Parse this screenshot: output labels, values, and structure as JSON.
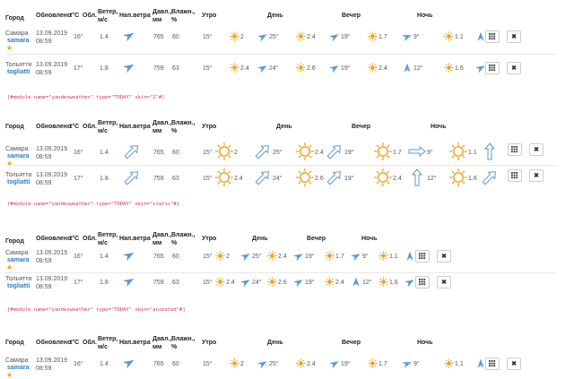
{
  "headers": {
    "city": "Город",
    "updated": "Обновлено",
    "temp": "t°С",
    "cloud": "Обл.",
    "wind_speed": [
      "Ветер,",
      "м/с"
    ],
    "wind_dir": "Нап.ветра",
    "pressure": [
      "Давл.,",
      "мм"
    ],
    "humidity": [
      "Влажн.,",
      "%"
    ],
    "morning": "Утро",
    "day": "День",
    "evening": "Вечер",
    "night": "Ночь"
  },
  "cities": [
    {
      "name": "Самара",
      "slug": "samara",
      "date": "13.09.2019",
      "time": "08:59",
      "temp": "16°",
      "wind": "1.4",
      "pressure": "765",
      "humidity": "60",
      "morning_t": "15°",
      "p1": "2",
      "day_t": "25°",
      "p2": "2.4",
      "evening_t": "19°",
      "p3": "1.7",
      "night_t": "9°",
      "p4": "1.1"
    },
    {
      "name": "Тольятти",
      "slug": "togliatti",
      "date": "13.09.2019",
      "time": "08:59",
      "temp": "17°",
      "wind": "1.8",
      "pressure": "759",
      "humidity": "63",
      "morning_t": "15°",
      "p1": "2.4",
      "day_t": "24°",
      "p2": "2.6",
      "evening_t": "19°",
      "p3": "2.4",
      "night_t": "12°",
      "p4": "1.6"
    }
  ],
  "modules": [
    "[#module name=\"yandexweather\" type=\"TODAY\" skin=\"2\"#]",
    "[#module name=\"yandexweather\" type=\"TODAY\" skin=\"static\"#]",
    "[#module name=\"yandexweather\" type=\"TODAY\" skin=\"animated\"#]"
  ],
  "icons": {
    "grid": "grid-icon",
    "close": "close-icon",
    "sun": "sun-icon",
    "wind": "wind-arrow-icon"
  },
  "colors": {
    "link": "#2a7ec3",
    "sun": "#f0a020",
    "arrow": "#5a9ad8",
    "code": "#d0306a",
    "star": "#f0a500"
  }
}
